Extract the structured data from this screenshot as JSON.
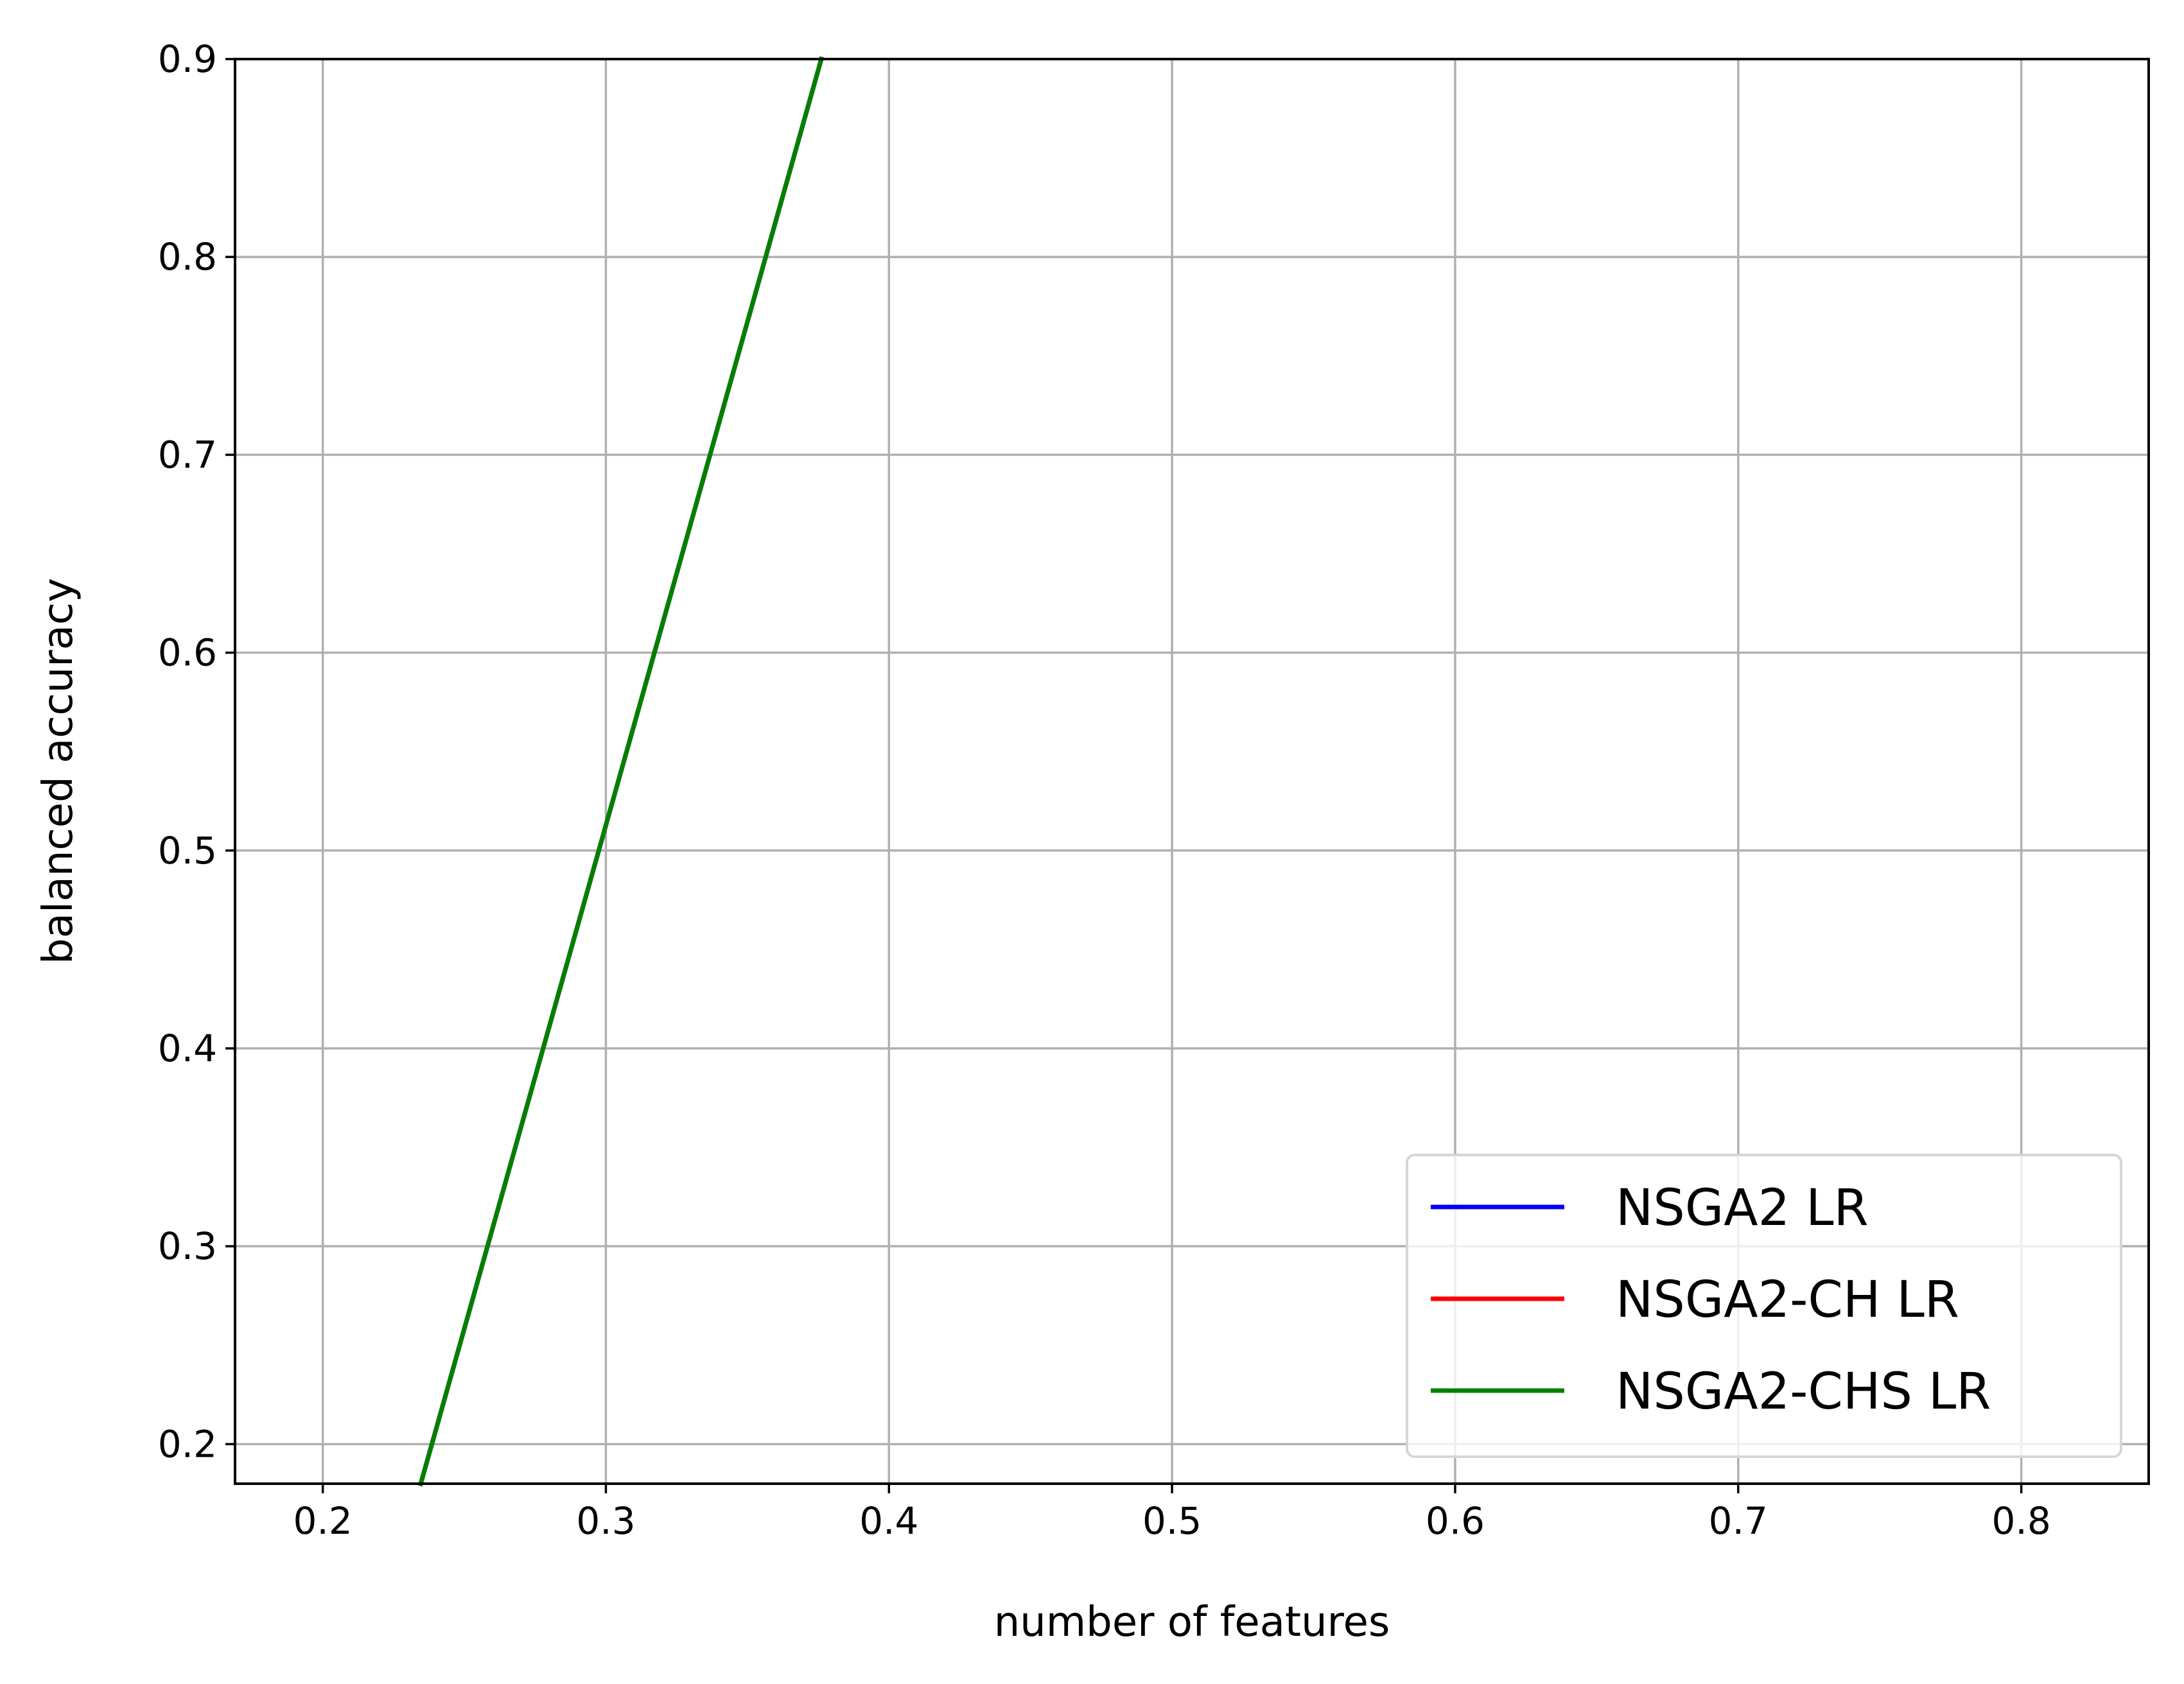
{
  "chart_data": {
    "type": "line",
    "title": "",
    "xlabel": "number of features",
    "ylabel": "balanced accuracy",
    "xlim": [
      0.169,
      0.845
    ],
    "ylim": [
      0.18,
      0.9
    ],
    "x_ticks": [
      0.2,
      0.3,
      0.4,
      0.5,
      0.6,
      0.7,
      0.8
    ],
    "x_tick_labels": [
      "0.2",
      "0.3",
      "0.4",
      "0.5",
      "0.6",
      "0.7",
      "0.8"
    ],
    "y_ticks": [
      0.2,
      0.3,
      0.4,
      0.5,
      0.6,
      0.7,
      0.8,
      0.9
    ],
    "y_tick_labels": [
      "0.2",
      "0.3",
      "0.4",
      "0.5",
      "0.6",
      "0.7",
      "0.8",
      "0.9"
    ],
    "grid": true,
    "legend_position": "lower-right",
    "series": [
      {
        "name": "NSGA2 LR",
        "color": "#0000ff",
        "x": [
          0.2346,
          0.3761
        ],
        "y": [
          0.18,
          0.9
        ]
      },
      {
        "name": "NSGA2-CH LR",
        "color": "#ff0000",
        "x": [
          0.2346,
          0.3761
        ],
        "y": [
          0.18,
          0.9
        ]
      },
      {
        "name": "NSGA2-CHS LR",
        "color": "#008000",
        "x": [
          0.2346,
          0.3761
        ],
        "y": [
          0.18,
          0.9
        ]
      }
    ]
  }
}
